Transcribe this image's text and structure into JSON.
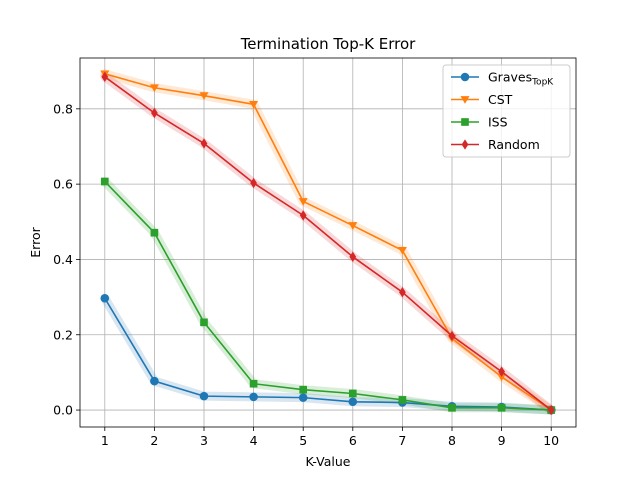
{
  "chart_data": {
    "type": "line",
    "title": "Termination Top-K Error",
    "xlabel": "K-Value",
    "ylabel": "Error",
    "x": [
      1,
      2,
      3,
      4,
      5,
      6,
      7,
      8,
      9,
      10
    ],
    "xlim": [
      0.5,
      10.5
    ],
    "ylim": [
      -0.045,
      0.935
    ],
    "yticks": [
      0.0,
      0.2,
      0.4,
      0.6,
      0.8
    ],
    "ytick_labels": [
      "0.0",
      "0.2",
      "0.4",
      "0.6",
      "0.8"
    ],
    "xtick_labels": [
      "1",
      "2",
      "3",
      "4",
      "5",
      "6",
      "7",
      "8",
      "9",
      "10"
    ],
    "grid": true,
    "legend_position": "top-right",
    "series": [
      {
        "name": "Graves",
        "subscript": "TopK",
        "color": "#1f77b4",
        "marker": "circle",
        "values": [
          0.297,
          0.077,
          0.037,
          0.035,
          0.033,
          0.022,
          0.02,
          0.01,
          0.008,
          0.0
        ]
      },
      {
        "name": "CST",
        "color": "#ff7f0e",
        "marker": "triangle-down",
        "values": [
          0.893,
          0.856,
          0.835,
          0.812,
          0.554,
          0.49,
          0.424,
          0.19,
          0.088,
          0.0
        ]
      },
      {
        "name": "ISS",
        "color": "#2ca02c",
        "marker": "square",
        "values": [
          0.607,
          0.471,
          0.233,
          0.07,
          0.054,
          0.044,
          0.027,
          0.006,
          0.006,
          0.0
        ]
      },
      {
        "name": "Random",
        "color": "#d62728",
        "marker": "diamond",
        "values": [
          0.885,
          0.789,
          0.708,
          0.603,
          0.517,
          0.407,
          0.313,
          0.197,
          0.102,
          0.0
        ]
      }
    ]
  }
}
